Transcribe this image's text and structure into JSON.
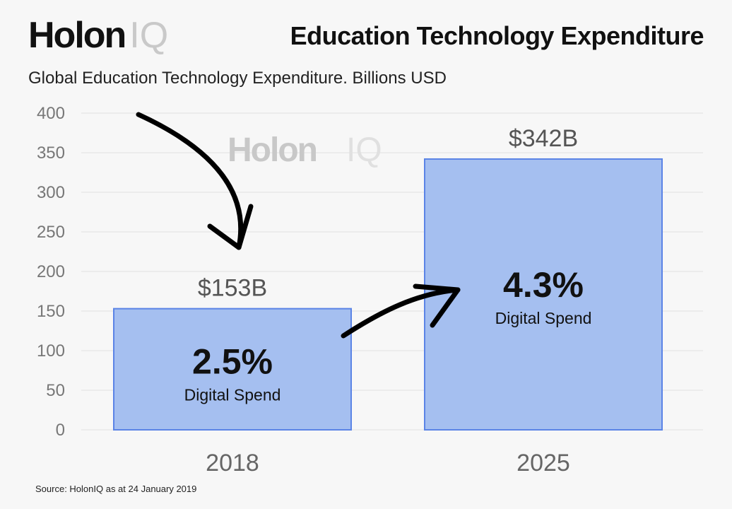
{
  "header": {
    "logo_main": "Holon",
    "logo_accent": "IQ",
    "title": "Education Technology Expenditure"
  },
  "subtitle": "Global Education Technology Expenditure. Billions USD",
  "watermark": {
    "main": "Holon",
    "accent": "IQ"
  },
  "source": "Source: HolonIQ as at 24 January 2019",
  "colors": {
    "bar_fill": "#a5bff0",
    "bar_stroke": "#5b84e6",
    "grid": "#e2e2e2",
    "arrow": "#000000"
  },
  "chart_data": {
    "type": "bar",
    "categories": [
      "2018",
      "2025"
    ],
    "values": [
      153,
      342
    ],
    "value_labels": [
      "$153B",
      "$342B"
    ],
    "digital_share": [
      "2.5%",
      "4.3%"
    ],
    "digital_share_label": "Digital Spend",
    "ylim": [
      0,
      400
    ],
    "yticks": [
      0,
      50,
      100,
      150,
      200,
      250,
      300,
      350,
      400
    ],
    "grid": true,
    "annotations": [
      "arrow-to-2018-value",
      "arrow-2018-to-2025"
    ]
  }
}
